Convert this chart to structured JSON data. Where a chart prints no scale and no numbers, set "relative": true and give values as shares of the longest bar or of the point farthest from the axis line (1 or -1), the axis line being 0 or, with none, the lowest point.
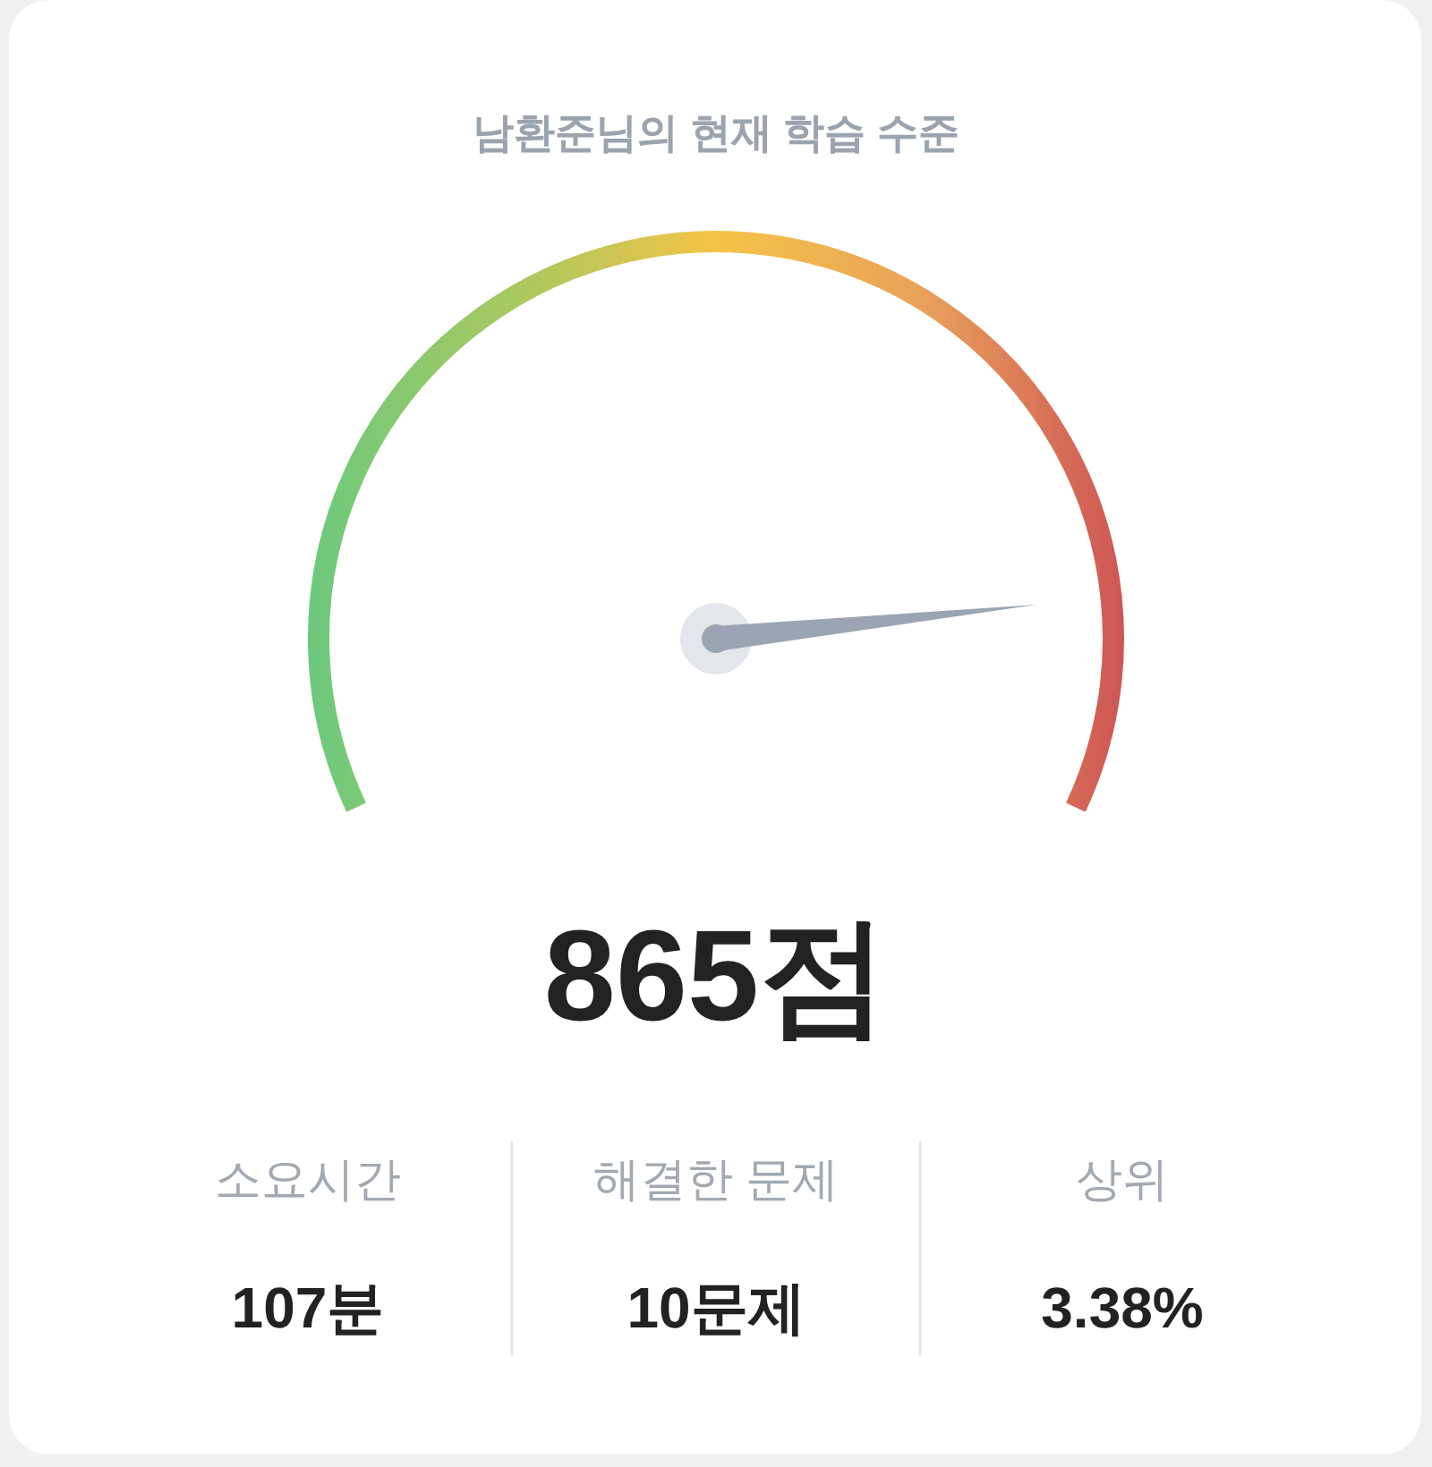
{
  "chart_data": {
    "type": "donut",
    "relative": true,
    "title": "남환준님의 현재 학습 수준",
    "categories": [
      null,
      null
    ],
    "values": [
      86.5,
      13.5
    ],
    "annotations": [
      "865점",
      "소요시간",
      "107분",
      "해결한 문제",
      "10문제",
      "상위",
      "3.38%"
    ]
  }
}
